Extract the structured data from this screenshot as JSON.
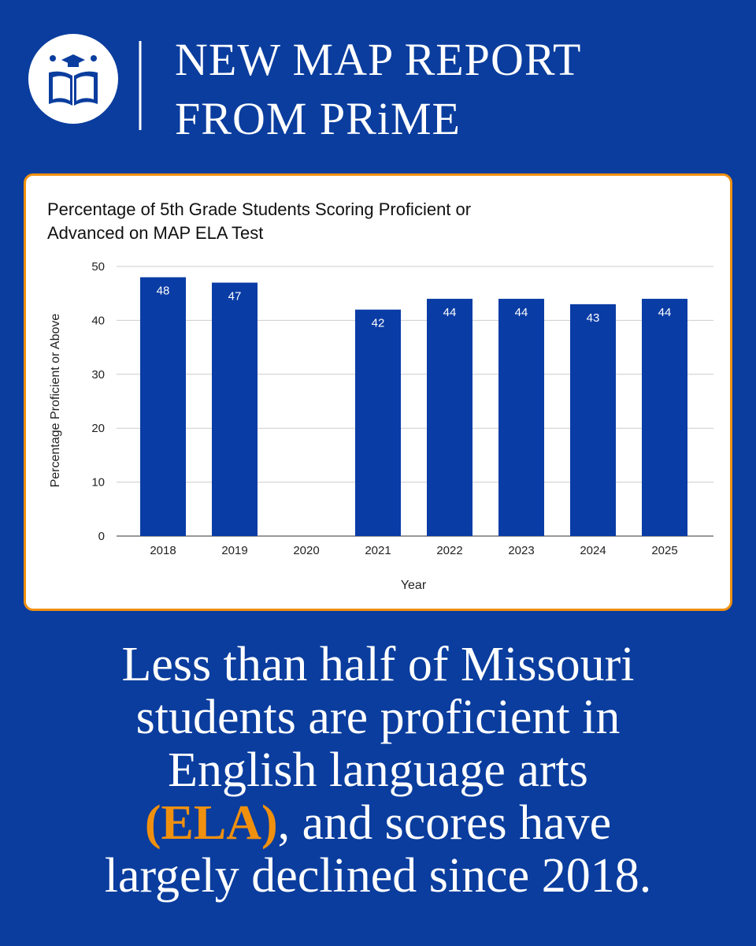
{
  "header": {
    "title_lines": [
      "NEW MAP REPORT",
      "FROM PRiME"
    ]
  },
  "chart_data": {
    "type": "bar",
    "title_lines": [
      "Percentage of 5th Grade Students Scoring Proficient or",
      "Advanced on MAP ELA Test"
    ],
    "x_label": "Year",
    "y_label": "Percentage Proficient or Above",
    "categories": [
      "2018",
      "2019",
      "2020",
      "2021",
      "2022",
      "2023",
      "2024",
      "2025"
    ],
    "values": [
      48,
      47,
      null,
      42,
      44,
      44,
      43,
      44
    ],
    "color": "#0a3ca5",
    "ylim": [
      0,
      50
    ],
    "yticks": [
      0,
      10,
      20,
      30,
      40,
      50
    ],
    "grid": true
  },
  "caption": {
    "lines": [
      {
        "text": "Less than half of Missouri"
      },
      {
        "text": "students are proficient in"
      },
      {
        "text": "English language arts"
      },
      {
        "highlight": "(ELA)",
        "text": ", and scores have"
      },
      {
        "text": "largely declined since 2018."
      }
    ]
  }
}
